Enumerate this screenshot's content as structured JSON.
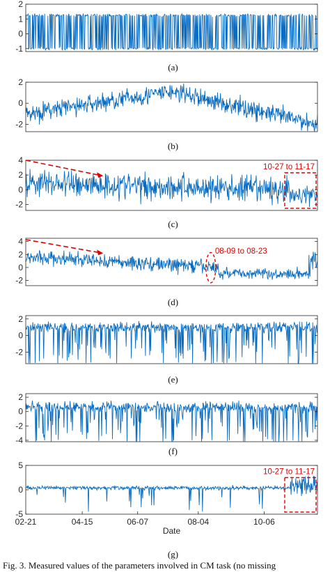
{
  "figure": {
    "caption": "Fig. 3.   Measured values of the parameters involved in CM task (no missing"
  },
  "style": {
    "series_color": "#0a6cc0",
    "annotation_color": "#e00000",
    "axis_color": "#262626"
  },
  "chart_data": [
    {
      "type": "line",
      "label": "(a)",
      "title": "",
      "xlabel": "",
      "ylabel": "",
      "ylim": [
        -1.2,
        2
      ],
      "yticks": [
        -1,
        0,
        1,
        2
      ],
      "series": [
        {
          "pattern": "binary",
          "values": [
            -1,
            1.25
          ],
          "noise": 0.2
        }
      ],
      "annotations": []
    },
    {
      "type": "line",
      "label": "(b)",
      "title": "",
      "xlabel": "",
      "ylabel": "",
      "ylim": [
        -2.7,
        2
      ],
      "yticks": [
        -2,
        0,
        2
      ],
      "series": [
        {
          "pattern": "seasonal",
          "level_start": -1.0,
          "level_mid": 1.1,
          "level_end": -2.0,
          "noise": 0.8
        }
      ],
      "annotations": []
    },
    {
      "type": "line",
      "label": "(c)",
      "title": "",
      "xlabel": "",
      "ylabel": "",
      "ylim": [
        -2.8,
        4
      ],
      "yticks": [
        -2,
        0,
        2,
        4
      ],
      "series": [
        {
          "pattern": "decline",
          "level_start": 1.0,
          "level_end": -0.2,
          "noise": 1.3
        }
      ],
      "annotations": [
        {
          "text": "10-27 to 11-17",
          "kind": "box",
          "start": "10-27",
          "end": "11-17"
        },
        {
          "kind": "arrow",
          "from": [
            "02-21",
            4.0
          ],
          "to": [
            "05-05",
            1.9
          ]
        }
      ]
    },
    {
      "type": "line",
      "label": "(d)",
      "title": "",
      "xlabel": "",
      "ylabel": "",
      "ylim": [
        -2.8,
        4.5
      ],
      "yticks": [
        -2,
        0,
        2,
        4
      ],
      "series": [
        {
          "pattern": "decline_shift",
          "level_start": 1.6,
          "level_end": -0.8,
          "noise": 1.0
        }
      ],
      "annotations": [
        {
          "text": "08-09 to 08-23",
          "kind": "ellipse",
          "start": "08-09",
          "end": "08-23"
        },
        {
          "kind": "arrow",
          "from": [
            "02-21",
            4.3
          ],
          "to": [
            "05-05",
            2.2
          ]
        }
      ]
    },
    {
      "type": "line",
      "label": "(e)",
      "title": "",
      "xlabel": "",
      "ylabel": "",
      "ylim": [
        -3.4,
        2.4
      ],
      "yticks": [
        -2,
        0,
        2
      ],
      "series": [
        {
          "pattern": "dips",
          "level": 1.0,
          "noise": 0.7
        }
      ],
      "annotations": []
    },
    {
      "type": "line",
      "label": "(f)",
      "title": "",
      "xlabel": "",
      "ylabel": "",
      "ylim": [
        -4.2,
        2.5
      ],
      "yticks": [
        -4,
        -2,
        0,
        2
      ],
      "series": [
        {
          "pattern": "dips",
          "level": 0.6,
          "noise": 0.9
        }
      ],
      "annotations": []
    },
    {
      "type": "line",
      "label": "(g)",
      "title": "",
      "xlabel": "Date",
      "ylabel": "",
      "ylim": [
        -5,
        5
      ],
      "yticks": [
        -5,
        0,
        5
      ],
      "xticks": [
        "02-21",
        "04-15",
        "06-07",
        "08-04",
        "10-06"
      ],
      "series": [
        {
          "pattern": "flat_burst",
          "level": 0.4,
          "noise": 0.7
        }
      ],
      "annotations": [
        {
          "text": "10-27 to 11-17",
          "kind": "box",
          "start": "10-27",
          "end": "11-17"
        }
      ]
    }
  ]
}
